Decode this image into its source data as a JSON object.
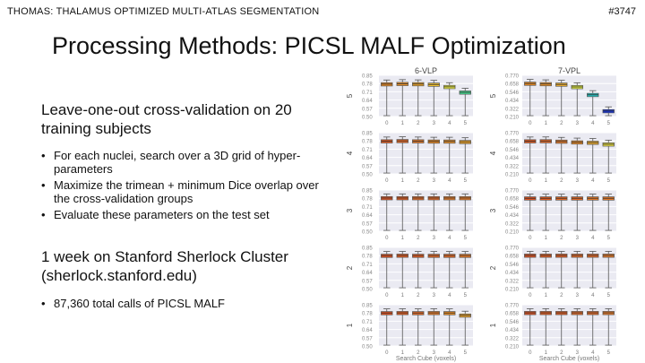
{
  "header": {
    "left_text": "THOMAS: THALAMUS OPTIMIZED MULTI-ATLAS SEGMENTATION",
    "right_text": "#3747"
  },
  "slide": {
    "title": "Processing Methods: PICSL MALF Optimization",
    "para1": "Leave-one-out cross-validation on 20 training subjects",
    "bullets1": [
      "For each nuclei, search over a 3D grid of hyper-parameters",
      "Maximize the trimean + minimum Dice overlap over the cross-validation groups",
      "Evaluate these parameters on the test set"
    ],
    "para2": "1 week on Stanford Sherlock Cluster (sherlock.stanford.edu)",
    "bullets2": [
      "87,360 total calls of PICSL MALF"
    ]
  },
  "chart_data": {
    "type": "box",
    "columns": [
      {
        "title": "6-VLP",
        "y_ticks": [
          "0.85",
          "0.78",
          "0.71",
          "0.64",
          "0.57",
          "0.50"
        ],
        "ylim": [
          0.5,
          0.85
        ]
      },
      {
        "title": "7-VPL",
        "y_ticks": [
          "0.770",
          "0.658",
          "0.546",
          "0.434",
          "0.322",
          "0.210"
        ],
        "ylim": [
          0.21,
          0.77
        ]
      }
    ],
    "x_categories": [
      "0",
      "1",
      "2",
      "3",
      "4",
      "5"
    ],
    "xlabel": "Search Cube (voxels)",
    "row_labels": [
      "5",
      "4",
      "3",
      "2",
      "1"
    ],
    "medians": [
      [
        [
          0.775,
          0.778,
          0.776,
          0.772,
          0.752,
          0.705
        ],
        [
          0.658,
          0.652,
          0.646,
          0.612,
          0.505,
          0.285
        ]
      ],
      [
        [
          0.778,
          0.78,
          0.778,
          0.776,
          0.776,
          0.772
        ],
        [
          0.655,
          0.656,
          0.65,
          0.64,
          0.635,
          0.612
        ]
      ],
      [
        [
          0.782,
          0.782,
          0.782,
          0.782,
          0.782,
          0.782
        ],
        [
          0.658,
          0.658,
          0.658,
          0.658,
          0.658,
          0.658
        ]
      ],
      [
        [
          0.78,
          0.781,
          0.78,
          0.78,
          0.78,
          0.78
        ],
        [
          0.66,
          0.66,
          0.66,
          0.66,
          0.66,
          0.66
        ]
      ],
      [
        [
          0.78,
          0.781,
          0.78,
          0.781,
          0.78,
          0.76
        ],
        [
          0.66,
          0.66,
          0.66,
          0.66,
          0.66,
          0.66
        ]
      ]
    ],
    "box_colors": [
      [
        [
          "#f08a1c",
          "#f29324",
          "#f5a623",
          "#f7c52e",
          "#f2f23a",
          "#40e090"
        ],
        [
          "#f08a1c",
          "#f29324",
          "#f5b12a",
          "#e6f23a",
          "#20c8c8",
          "#1030e0"
        ]
      ],
      [
        [
          "#ea5a1a",
          "#ec6820",
          "#ef7a22",
          "#f08a1c",
          "#f29324",
          "#f5a623"
        ],
        [
          "#ea5a1a",
          "#ec6820",
          "#ef7a22",
          "#f08a1c",
          "#f5b12a",
          "#f2e63a"
        ]
      ],
      [
        [
          "#e8501c",
          "#ea5a1a",
          "#ec6820",
          "#ec6820",
          "#ef7a22",
          "#ef7a22"
        ],
        [
          "#e8501c",
          "#ea5a1a",
          "#ec6820",
          "#ec6820",
          "#ef7a22",
          "#ef7a22"
        ]
      ],
      [
        [
          "#e8501c",
          "#ea5a1a",
          "#ea5a1a",
          "#ec6820",
          "#ec6820",
          "#ef7a22"
        ],
        [
          "#e8501c",
          "#ea5a1a",
          "#ea5a1a",
          "#ec6820",
          "#ec6820",
          "#ef7a22"
        ]
      ],
      [
        [
          "#e8501c",
          "#ea5a1a",
          "#ec6820",
          "#ef7a22",
          "#f08a1c",
          "#f5a623"
        ],
        [
          "#e8501c",
          "#ea5a1a",
          "#ea5a1a",
          "#ec6820",
          "#ec6820",
          "#ef7a22"
        ]
      ]
    ]
  }
}
